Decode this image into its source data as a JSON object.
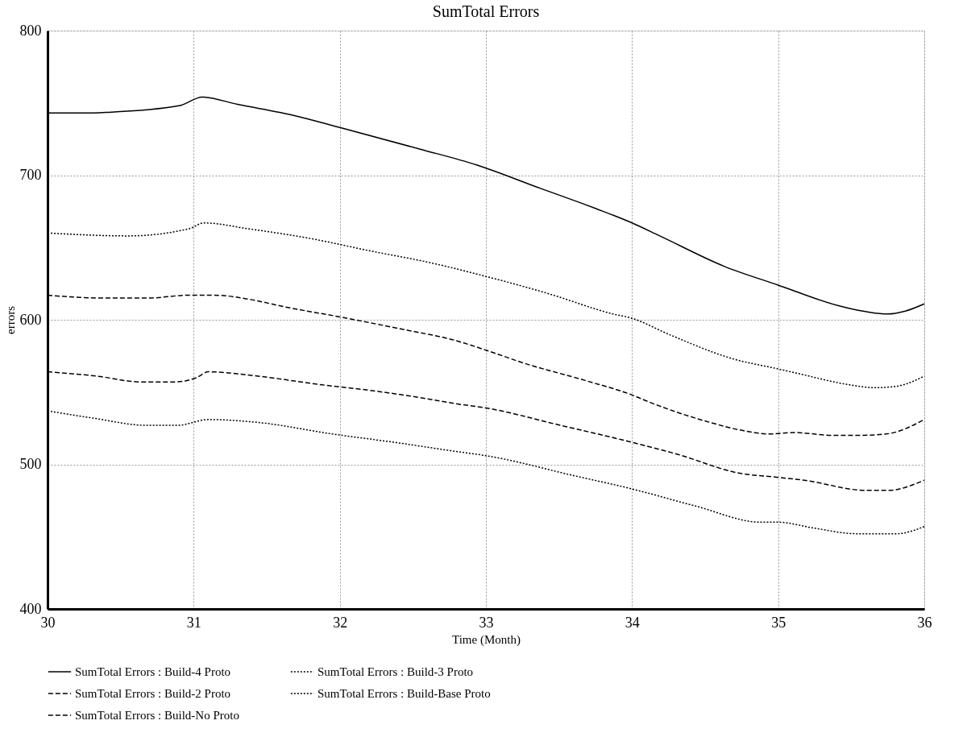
{
  "chart_data": {
    "type": "line",
    "title": "SumTotal Errors",
    "xlabel": "Time (Month)",
    "ylabel": "errors",
    "xlim": [
      30,
      36
    ],
    "xticks": [
      30,
      31,
      32,
      33,
      34,
      35,
      36
    ],
    "ylim": [
      400,
      800
    ],
    "yticks": [
      400,
      500,
      600,
      700,
      800
    ],
    "grid": true,
    "legend": "bottom",
    "marker": "none",
    "series": [
      {
        "name": "SumTotal Errors : Build-4 Proto",
        "color": "#000000",
        "line_style": "solid",
        "x": [
          30,
          30.3,
          30.4,
          30.9,
          31.06,
          31.3,
          31.7,
          32,
          32.55,
          32.94,
          33.37,
          33.75,
          34,
          34.19,
          34.63,
          35,
          35.44,
          35.75,
          35.87,
          36
        ],
        "values": [
          743,
          743,
          743.4,
          748,
          754,
          749,
          741,
          733,
          718,
          707,
          691,
          677,
          667,
          658,
          637,
          624,
          609,
          604,
          606,
          611
        ]
      },
      {
        "name": "SumTotal Errors : Build-3 Proto",
        "color": "#000000",
        "line_style": "dotted",
        "x": [
          30,
          30.55,
          30.97,
          31.07,
          31.37,
          31.81,
          32.19,
          32.64,
          33,
          33.43,
          33.87,
          34,
          34.25,
          34.69,
          35,
          35.13,
          35.49,
          35.66,
          35.81,
          36
        ],
        "values": [
          660,
          658,
          663,
          667,
          663,
          656,
          648,
          639,
          630,
          618,
          604,
          601,
          590,
          573,
          566,
          563,
          555,
          553,
          554,
          561
        ]
      },
      {
        "name": "SumTotal Errors : Build-2 Proto",
        "color": "#000000",
        "line_style": "dashed",
        "x": [
          30,
          30.34,
          30.64,
          30.87,
          31.02,
          31.1,
          31.44,
          31.88,
          32.22,
          32.56,
          32.79,
          33,
          33.51,
          33.93,
          34.31,
          34.73,
          35,
          35.18,
          35.6,
          35.75,
          36
        ],
        "values": [
          564,
          561,
          557,
          557,
          560,
          564,
          561,
          555,
          551,
          546,
          542,
          539,
          527,
          517,
          507,
          494,
          491,
          489,
          482,
          482,
          489
        ]
      },
      {
        "name": "SumTotal Errors : Build-Base Proto",
        "color": "#000000",
        "line_style": "dotted",
        "x": [
          30,
          30.31,
          30.68,
          30.89,
          31.1,
          31.44,
          31.95,
          32.39,
          32.79,
          33,
          33.61,
          34,
          34.44,
          34.88,
          35,
          35.24,
          35.54,
          35.81,
          36
        ],
        "values": [
          537,
          532,
          527,
          527,
          531,
          529,
          521,
          515,
          509,
          506,
          492,
          483,
          471,
          460,
          460,
          456,
          452,
          452,
          457
        ]
      },
      {
        "name": "SumTotal Errors : Build-No Proto",
        "color": "#000000",
        "line_style": "dashed",
        "x": [
          30,
          30.38,
          30.68,
          30.97,
          31.14,
          31.39,
          31.62,
          32,
          32.45,
          32.78,
          33,
          33.26,
          33.68,
          34,
          34.12,
          34.5,
          34.78,
          34.94,
          35.11,
          35.38,
          35.53,
          35.74,
          36
        ],
        "values": [
          617,
          615,
          615,
          617,
          617,
          614,
          609,
          602,
          593,
          586,
          579,
          570,
          558,
          548,
          543,
          530,
          523,
          521,
          522,
          520,
          520,
          521,
          531
        ]
      }
    ]
  }
}
